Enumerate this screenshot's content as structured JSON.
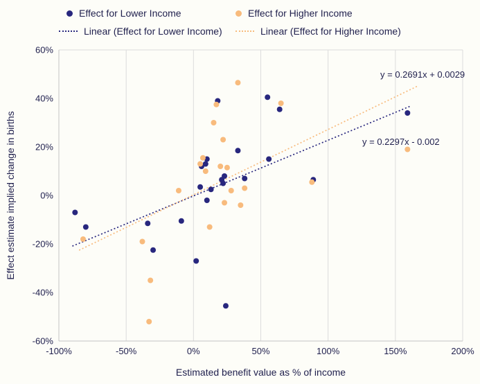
{
  "chart_data": {
    "type": "scatter",
    "title": "",
    "xlabel": "Estimated benefit value as % of income",
    "ylabel": "Effect estimate implied change in births",
    "xlim": [
      -1.0,
      2.0
    ],
    "ylim": [
      -0.6,
      0.6
    ],
    "x_ticks": [
      -1.0,
      -0.5,
      0.0,
      0.5,
      1.0,
      1.5,
      2.0
    ],
    "y_ticks": [
      0.6,
      0.4,
      0.2,
      0.0,
      -0.2,
      -0.4,
      -0.6
    ],
    "grid": "vertical-only",
    "legend_position": "top",
    "colors": {
      "grid": "#dcdcdc",
      "axis": "#c3c3c3",
      "text": "#1f1f4d",
      "background": "#fdfdf8"
    },
    "series": [
      {
        "name": "Effect for Lower Income",
        "color": "#28277e",
        "marker": "circle",
        "points": [
          [
            -0.88,
            -0.07
          ],
          [
            -0.8,
            -0.13
          ],
          [
            -0.34,
            -0.115
          ],
          [
            -0.3,
            -0.225
          ],
          [
            -0.09,
            -0.105
          ],
          [
            0.02,
            -0.27
          ],
          [
            0.05,
            0.035
          ],
          [
            0.06,
            0.12
          ],
          [
            0.09,
            0.13
          ],
          [
            0.1,
            0.15
          ],
          [
            0.1,
            -0.02
          ],
          [
            0.13,
            0.025
          ],
          [
            0.18,
            0.39
          ],
          [
            0.21,
            0.065
          ],
          [
            0.22,
            0.05
          ],
          [
            0.23,
            0.08
          ],
          [
            0.24,
            -0.455
          ],
          [
            0.33,
            0.185
          ],
          [
            0.38,
            0.07
          ],
          [
            0.55,
            0.405
          ],
          [
            0.56,
            0.15
          ],
          [
            0.64,
            0.355
          ],
          [
            0.89,
            0.065
          ],
          [
            1.59,
            0.34
          ]
        ]
      },
      {
        "name": "Effect for Higher Income",
        "color": "#f8bb7d",
        "marker": "circle",
        "points": [
          [
            -0.82,
            -0.18
          ],
          [
            -0.38,
            -0.19
          ],
          [
            -0.33,
            -0.52
          ],
          [
            -0.32,
            -0.35
          ],
          [
            -0.11,
            0.02
          ],
          [
            0.05,
            0.13
          ],
          [
            0.07,
            0.155
          ],
          [
            0.09,
            0.1
          ],
          [
            0.12,
            -0.13
          ],
          [
            0.15,
            0.3
          ],
          [
            0.17,
            0.375
          ],
          [
            0.2,
            0.12
          ],
          [
            0.22,
            0.23
          ],
          [
            0.23,
            -0.03
          ],
          [
            0.25,
            0.115
          ],
          [
            0.28,
            0.02
          ],
          [
            0.33,
            0.465
          ],
          [
            0.35,
            -0.04
          ],
          [
            0.38,
            0.03
          ],
          [
            0.65,
            0.38
          ],
          [
            0.88,
            0.055
          ],
          [
            1.59,
            0.19
          ]
        ]
      }
    ],
    "trendlines": [
      {
        "name": "Linear (Effect for Lower Income)",
        "color": "#28277e",
        "slope": 0.2297,
        "intercept": -0.002,
        "x_start": -0.9,
        "x_end": 1.62,
        "equation": "y = 0.2297x - 0.002"
      },
      {
        "name": "Linear (Effect for Higher Income)",
        "color": "#f8bb7d",
        "slope": 0.2691,
        "intercept": 0.0029,
        "x_start": -0.85,
        "x_end": 1.66,
        "equation": "y = 0.2691x + 0.0029"
      }
    ]
  }
}
